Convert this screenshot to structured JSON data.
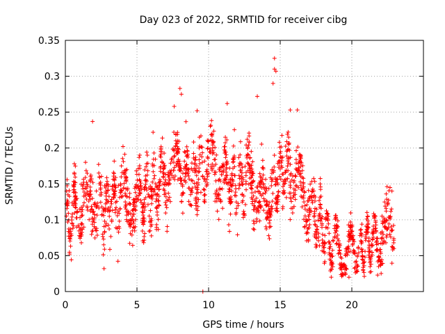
{
  "chart_data": {
    "type": "scatter",
    "title": "Day 023 of 2022, SRMTID for receiver cibg",
    "xlabel": "GPS time / hours",
    "ylabel": "SRMTID / TECUs",
    "xlim": [
      0,
      25
    ],
    "ylim": [
      0,
      0.35
    ],
    "xticks": [
      0,
      5,
      10,
      15,
      20
    ],
    "xtick_labels": [
      "0",
      "5",
      "10",
      "15",
      "20"
    ],
    "yticks": [
      0,
      0.05,
      0.1,
      0.15,
      0.2,
      0.25,
      0.3,
      0.35
    ],
    "ytick_labels": [
      "0",
      "0.05",
      "0.1",
      "0.15",
      "0.2",
      "0.25",
      "0.3",
      "0.35"
    ],
    "grid": true,
    "marker": "+",
    "color": "#ff0000",
    "trend": {
      "x": [
        0,
        1,
        2,
        3,
        4,
        5,
        6,
        7,
        8,
        9,
        10,
        11,
        12,
        13,
        14,
        15,
        16,
        17,
        18,
        19,
        20,
        21,
        22,
        23
      ],
      "y": [
        0.1,
        0.115,
        0.12,
        0.115,
        0.13,
        0.125,
        0.14,
        0.16,
        0.17,
        0.16,
        0.18,
        0.16,
        0.15,
        0.16,
        0.12,
        0.17,
        0.16,
        0.13,
        0.085,
        0.06,
        0.055,
        0.065,
        0.075,
        0.09
      ]
    },
    "notable_points": [
      {
        "x": 1.9,
        "y": 0.237
      },
      {
        "x": 2.7,
        "y": 0.032
      },
      {
        "x": 7.6,
        "y": 0.258
      },
      {
        "x": 8.0,
        "y": 0.283
      },
      {
        "x": 8.1,
        "y": 0.275
      },
      {
        "x": 9.2,
        "y": 0.252
      },
      {
        "x": 11.3,
        "y": 0.262
      },
      {
        "x": 13.4,
        "y": 0.272
      },
      {
        "x": 14.6,
        "y": 0.325
      },
      {
        "x": 14.6,
        "y": 0.31
      },
      {
        "x": 14.7,
        "y": 0.307
      },
      {
        "x": 14.5,
        "y": 0.29
      },
      {
        "x": 15.7,
        "y": 0.253
      },
      {
        "x": 16.2,
        "y": 0.253
      },
      {
        "x": 19.8,
        "y": 0.02
      },
      {
        "x": 21.8,
        "y": 0.023
      },
      {
        "x": 22.8,
        "y": 0.14
      },
      {
        "x": 9.6,
        "y": 0.0
      }
    ],
    "n_points": 1900
  }
}
